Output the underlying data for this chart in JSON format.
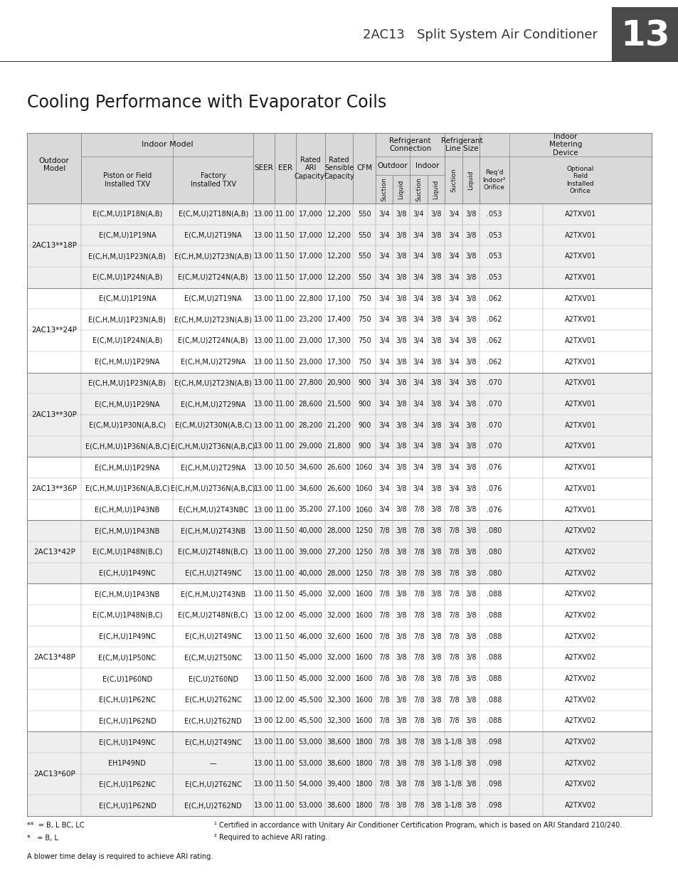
{
  "title": "Cooling Performance with Evaporator Coils",
  "header_title": "2AC13   Split System Air Conditioner",
  "page_number": "13",
  "bg_color": "#ffffff",
  "header_bg": "#cccccc",
  "dark_header_bg": "#4a4a4a",
  "table_header_bg": "#d9d9d9",
  "rows": [
    [
      "2AC13**18P",
      "E(C,M,U)1P18N(A,B)",
      "E(C,M,U)2T18N(A,B)",
      "13.00",
      "11.00",
      "17,000",
      "12,200",
      "550",
      "3/4",
      "3/8",
      "3/4",
      "3/8",
      "3/4",
      "3/8",
      ".053",
      "A2TXV01"
    ],
    [
      "",
      "E(C,M,U)1P19NA",
      "E(C,M,U)2T19NA",
      "13.00",
      "11.50",
      "17,000",
      "12,200",
      "550",
      "3/4",
      "3/8",
      "3/4",
      "3/8",
      "3/4",
      "3/8",
      ".053",
      "A2TXV01"
    ],
    [
      "",
      "E(C,H,M,U)1P23N(A,B)",
      "E(C,H,M,U)2T23N(A,B)",
      "13.00",
      "11.50",
      "17,000",
      "12,200",
      "550",
      "3/4",
      "3/8",
      "3/4",
      "3/8",
      "3/4",
      "3/8",
      ".053",
      "A2TXV01"
    ],
    [
      "",
      "E(C,M,U)1P24N(A,B)",
      "E(C,M,U)2T24N(A,B)",
      "13.00",
      "11.50",
      "17,000",
      "12,200",
      "550",
      "3/4",
      "3/8",
      "3/4",
      "3/8",
      "3/4",
      "3/8",
      ".053",
      "A2TXV01"
    ],
    [
      "2AC13**24P",
      "E(C,M,U)1P19NA",
      "E(C,M,U)2T19NA",
      "13.00",
      "11.00",
      "22,800",
      "17,100",
      "750",
      "3/4",
      "3/8",
      "3/4",
      "3/8",
      "3/4",
      "3/8",
      ".062",
      "A2TXV01"
    ],
    [
      "",
      "E(C,H,M,U)1P23N(A,B)",
      "E(C,H,M,U)2T23N(A,B)",
      "13.00",
      "11.00",
      "23,200",
      "17,400",
      "750",
      "3/4",
      "3/8",
      "3/4",
      "3/8",
      "3/4",
      "3/8",
      ".062",
      "A2TXV01"
    ],
    [
      "",
      "E(C,M,U)1P24N(A,B)",
      "E(C,M,U)2T24N(A,B)",
      "13.00",
      "11.00",
      "23,000",
      "17,300",
      "750",
      "3/4",
      "3/8",
      "3/4",
      "3/8",
      "3/4",
      "3/8",
      ".062",
      "A2TXV01"
    ],
    [
      "",
      "E(C,H,M,U)1P29NA",
      "E(C,H,M,U)2T29NA",
      "13.00",
      "11.50",
      "23,000",
      "17,300",
      "750",
      "3/4",
      "3/8",
      "3/4",
      "3/8",
      "3/4",
      "3/8",
      ".062",
      "A2TXV01"
    ],
    [
      "2AC13**30P",
      "E(C,H,M,U)1P23N(A,B)",
      "E(C,H,M,U)2T23N(A,B)",
      "13.00",
      "11.00",
      "27,800",
      "20,900",
      "900",
      "3/4",
      "3/8",
      "3/4",
      "3/8",
      "3/4",
      "3/8",
      ".070",
      "A2TXV01"
    ],
    [
      "",
      "E(C,H,M,U)1P29NA",
      "E(C,H,M,U)2T29NA",
      "13.00",
      "11.00",
      "28,600",
      "21,500",
      "900",
      "3/4",
      "3/8",
      "3/4",
      "3/8",
      "3/4",
      "3/8",
      ".070",
      "A2TXV01"
    ],
    [
      "",
      "E(C,M,U)1P30N(A,B,C)",
      "E(C,M,U)2T30N(A,B,C)",
      "13.00",
      "11.00",
      "28,200",
      "21,200",
      "900",
      "3/4",
      "3/8",
      "3/4",
      "3/8",
      "3/4",
      "3/8",
      ".070",
      "A2TXV01"
    ],
    [
      "",
      "E(C,H,M,U)1P36N(A,B,C)",
      "E(C,H,M,U)2T36N(A,B,C)",
      "13.00",
      "11.00",
      "29,000",
      "21,800",
      "900",
      "3/4",
      "3/8",
      "3/4",
      "3/8",
      "3/4",
      "3/8",
      ".070",
      "A2TXV01"
    ],
    [
      "2AC13**36P",
      "E(C,H,M,U)1P29NA",
      "E(C,H,M,U)2T29NA",
      "13.00",
      "10.50",
      "34,600",
      "26,600",
      "1060",
      "3/4",
      "3/8",
      "3/4",
      "3/8",
      "3/4",
      "3/8",
      ".076",
      "A2TXV01"
    ],
    [
      "",
      "E(C,H,M,U)1P36N(A,B,C)",
      "E(C,H,M,U)2T36N(A,B,C)",
      "13.00",
      "11.00",
      "34,600",
      "26,600",
      "1060",
      "3/4",
      "3/8",
      "3/4",
      "3/8",
      "3/4",
      "3/8",
      ".076",
      "A2TXV01"
    ],
    [
      "",
      "E(C,H,M,U)1P43NB",
      "E(C,H,M,U)2T43NBC",
      "13.00",
      "11.00",
      "35,200",
      "27,100",
      "1060",
      "3/4",
      "3/8",
      "7/8",
      "3/8",
      "7/8",
      "3/8",
      ".076",
      "A2TXV01"
    ],
    [
      "2AC13*42P",
      "E(C,H,M,U)1P43NB",
      "E(C,H,M,U)2T43NB",
      "13.00",
      "11.50",
      "40,000",
      "28,000",
      "1250",
      "7/8",
      "3/8",
      "7/8",
      "3/8",
      "7/8",
      "3/8",
      ".080",
      "A2TXV02"
    ],
    [
      "",
      "E(C,M,U)1P48N(B,C)",
      "E(C,M,U)2T48N(B,C)",
      "13.00",
      "11.00",
      "39,000",
      "27,200",
      "1250",
      "7/8",
      "3/8",
      "7/8",
      "3/8",
      "7/8",
      "3/8",
      ".080",
      "A2TXV02"
    ],
    [
      "",
      "E(C,H,U)1P49NC",
      "E(C,H,U)2T49NC",
      "13.00",
      "11.00",
      "40,000",
      "28,000",
      "1250",
      "7/8",
      "3/8",
      "7/8",
      "3/8",
      "7/8",
      "3/8",
      ".080",
      "A2TXV02"
    ],
    [
      "2AC13*48P",
      "E(C,H,M,U)1P43NB",
      "E(C,H,M,U)2T43NB",
      "13.00",
      "11.50",
      "45,000",
      "32,000",
      "1600",
      "7/8",
      "3/8",
      "7/8",
      "3/8",
      "7/8",
      "3/8",
      ".088",
      "A2TXV02"
    ],
    [
      "",
      "E(C,M,U)1P48N(B,C)",
      "E(C,M,U)2T48N(B,C)",
      "13.00",
      "12.00",
      "45,000",
      "32,000",
      "1600",
      "7/8",
      "3/8",
      "7/8",
      "3/8",
      "7/8",
      "3/8",
      ".088",
      "A2TXV02"
    ],
    [
      "",
      "E(C,H,U)1P49NC",
      "E(C,H,U)2T49NC",
      "13.00",
      "11.50",
      "46,000",
      "32,600",
      "1600",
      "7/8",
      "3/8",
      "7/8",
      "3/8",
      "7/8",
      "3/8",
      ".088",
      "A2TXV02"
    ],
    [
      "",
      "E(C,M,U)1P50NC",
      "E(C,M,U)2T50NC",
      "13.00",
      "11.50",
      "45,000",
      "32,000",
      "1600",
      "7/8",
      "3/8",
      "7/8",
      "3/8",
      "7/8",
      "3/8",
      ".088",
      "A2TXV02"
    ],
    [
      "",
      "E(C,U)1P60ND",
      "E(C,U)2T60ND",
      "13.00",
      "11.50",
      "45,000",
      "32,000",
      "1600",
      "7/8",
      "3/8",
      "7/8",
      "3/8",
      "7/8",
      "3/8",
      ".088",
      "A2TXV02"
    ],
    [
      "",
      "E(C,H,U)1P62NC",
      "E(C,H,U)2T62NC",
      "13.00",
      "12.00",
      "45,500",
      "32,300",
      "1600",
      "7/8",
      "3/8",
      "7/8",
      "3/8",
      "7/8",
      "3/8",
      ".088",
      "A2TXV02"
    ],
    [
      "",
      "E(C,H,U)1P62ND",
      "E(C,H,U)2T62ND",
      "13.00",
      "12.00",
      "45,500",
      "32,300",
      "1600",
      "7/8",
      "3/8",
      "7/8",
      "3/8",
      "7/8",
      "3/8",
      ".088",
      "A2TXV02"
    ],
    [
      "2AC13*60P",
      "E(C,H,U)1P49NC",
      "E(C,H,U)2T49NC",
      "13.00",
      "11.00",
      "53,000",
      "38,600",
      "1800",
      "7/8",
      "3/8",
      "7/8",
      "3/8",
      "1-1/8",
      "3/8",
      ".098",
      "A2TXV02"
    ],
    [
      "",
      "EH1P49ND",
      "—",
      "13.00",
      "11.00",
      "53,000",
      "38,600",
      "1800",
      "7/8",
      "3/8",
      "7/8",
      "3/8",
      "1-1/8",
      "3/8",
      ".098",
      "A2TXV02"
    ],
    [
      "",
      "E(C,H,U)1P62NC",
      "E(C,H,U)2T62NC",
      "13.00",
      "11.50",
      "54,000",
      "39,400",
      "1800",
      "7/8",
      "3/8",
      "7/8",
      "3/8",
      "1-1/8",
      "3/8",
      ".098",
      "A2TXV02"
    ],
    [
      "",
      "E(C,H,U)1P62ND",
      "E(C,H,U)2T62ND",
      "13.00",
      "11.00",
      "53,000",
      "38,600",
      "1800",
      "7/8",
      "3/8",
      "7/8",
      "3/8",
      "1-1/8",
      "3/8",
      ".098",
      "A2TXV02"
    ]
  ],
  "group_starts": [
    0,
    4,
    8,
    12,
    15,
    18,
    25
  ],
  "group_labels": [
    "2AC13**18P",
    "2AC13**24P",
    "2AC13**30P",
    "2AC13**36P",
    "2AC13*42P",
    "2AC13*48P",
    "2AC13*60P"
  ]
}
